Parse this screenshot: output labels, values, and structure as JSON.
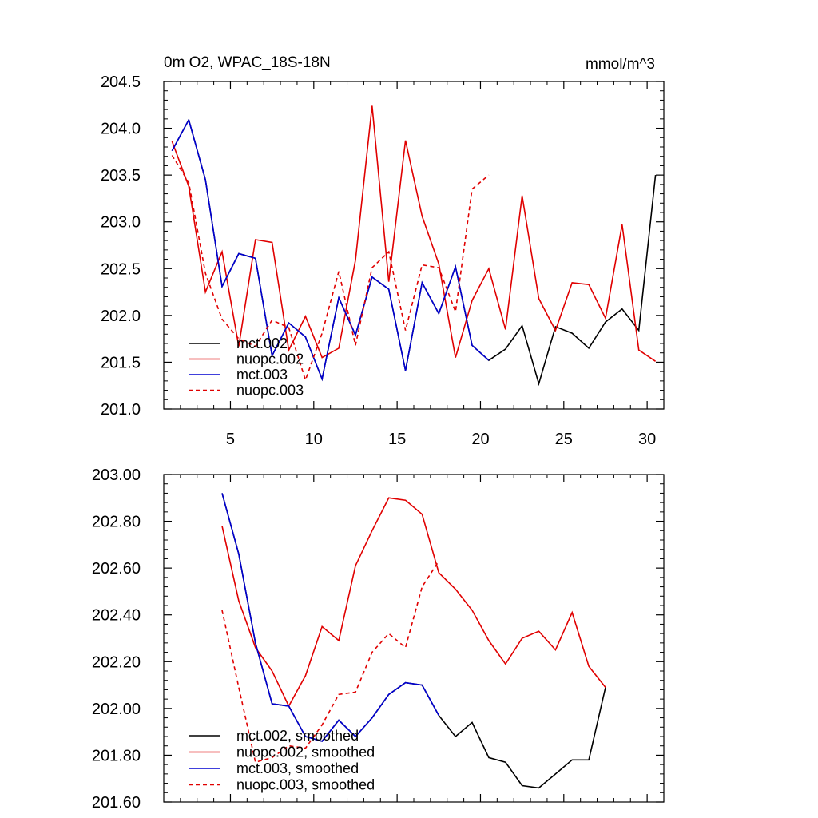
{
  "chart_data": [
    {
      "type": "line",
      "title": "0m O2, WPAC_18S-18N",
      "units": "mmol/m^3",
      "xlabel": "",
      "ylabel": "",
      "xlim": [
        1,
        31
      ],
      "ylim": [
        201.0,
        204.5
      ],
      "x_ticks": [
        5,
        10,
        15,
        20,
        25,
        30
      ],
      "x_tick_labels": [
        "5",
        "10",
        "15",
        "20",
        "25",
        "30"
      ],
      "y_ticks": [
        201.0,
        201.5,
        202.0,
        202.5,
        203.0,
        203.5,
        204.0,
        204.5
      ],
      "y_tick_labels": [
        "201.0",
        "201.5",
        "202.0",
        "202.5",
        "203.0",
        "203.5",
        "204.0",
        "204.5"
      ],
      "x_minor_step": 1,
      "y_minor_step": 0.1,
      "legend_position": "bottom-left",
      "series": [
        {
          "name": "mct.002",
          "color": "#000000",
          "dash": "solid",
          "x": [
            1.5,
            2.5,
            3.5,
            4.5,
            5.5,
            6.5,
            7.5,
            8.5,
            9.5,
            10.5,
            11.5,
            12.5,
            13.5,
            14.5,
            15.5,
            16.5,
            17.5,
            18.5,
            19.5,
            20.5,
            21.5,
            22.5,
            23.5,
            24.5,
            25.5,
            26.5,
            27.5,
            28.5,
            29.5,
            30.5
          ],
          "values": [
            203.76,
            204.09,
            203.45,
            202.31,
            202.66,
            202.61,
            201.57,
            201.92,
            201.77,
            201.32,
            202.19,
            201.79,
            202.41,
            202.28,
            201.41,
            202.35,
            202.02,
            202.52,
            201.68,
            201.52,
            201.64,
            201.89,
            201.27,
            201.88,
            201.81,
            201.65,
            201.93,
            202.07,
            201.84,
            203.5
          ]
        },
        {
          "name": "nuopc.002",
          "color": "#e00000",
          "dash": "solid",
          "x": [
            1.5,
            2.5,
            3.5,
            4.5,
            5.5,
            6.5,
            7.5,
            8.5,
            9.5,
            10.5,
            11.5,
            12.5,
            13.5,
            14.5,
            15.5,
            16.5,
            17.5,
            18.5,
            19.5,
            20.5,
            21.5,
            22.5,
            23.5,
            24.5,
            25.5,
            26.5,
            27.5,
            28.5,
            29.5,
            30.5
          ],
          "values": [
            203.86,
            203.38,
            202.25,
            202.68,
            201.67,
            202.81,
            202.78,
            201.63,
            201.99,
            201.55,
            201.65,
            202.59,
            204.24,
            202.36,
            203.87,
            203.06,
            202.55,
            201.55,
            202.16,
            202.5,
            201.85,
            203.28,
            202.18,
            201.84,
            202.35,
            202.33,
            201.97,
            202.97,
            201.63,
            201.51
          ]
        },
        {
          "name": "mct.003",
          "color": "#0000d0",
          "dash": "solid",
          "x": [
            1.5,
            2.5,
            3.5,
            4.5,
            5.5,
            6.5,
            7.5,
            8.5,
            9.5,
            10.5,
            11.5,
            12.5,
            13.5,
            14.5,
            15.5,
            16.5,
            17.5,
            18.5,
            19.5,
            20.5
          ],
          "values": [
            203.76,
            204.09,
            203.45,
            202.31,
            202.66,
            202.61,
            201.57,
            201.92,
            201.77,
            201.32,
            202.19,
            201.79,
            202.41,
            202.28,
            201.41,
            202.35,
            202.02,
            202.52,
            201.68,
            201.52
          ]
        },
        {
          "name": "nuopc.003",
          "color": "#e00000",
          "dash": "dashed",
          "x": [
            1.5,
            2.5,
            3.5,
            4.5,
            5.5,
            6.5,
            7.5,
            8.5,
            9.5,
            10.5,
            11.5,
            12.5,
            13.5,
            14.5,
            15.5,
            16.5,
            17.5,
            18.5,
            19.5,
            20.5
          ],
          "values": [
            203.71,
            203.42,
            202.45,
            201.96,
            201.75,
            201.67,
            201.95,
            201.87,
            201.31,
            201.81,
            202.47,
            201.68,
            202.51,
            202.68,
            201.84,
            202.54,
            202.51,
            202.04,
            203.35,
            203.5
          ]
        }
      ]
    },
    {
      "type": "line",
      "title": "",
      "xlabel": "",
      "ylabel": "",
      "xlim": [
        1,
        31
      ],
      "ylim": [
        201.6,
        203.0
      ],
      "x_ticks": [
        5,
        10,
        15,
        20,
        25,
        30
      ],
      "x_tick_labels": [],
      "y_ticks": [
        201.6,
        201.8,
        202.0,
        202.2,
        202.4,
        202.6,
        202.8,
        203.0
      ],
      "y_tick_labels": [
        "201.60",
        "201.80",
        "202.00",
        "202.20",
        "202.40",
        "202.60",
        "202.80",
        "203.00"
      ],
      "x_minor_step": 1,
      "y_minor_step": 0.04,
      "legend_position": "bottom-left",
      "series": [
        {
          "name": "mct.002, smoothed",
          "color": "#000000",
          "dash": "solid",
          "x": [
            4.5,
            5.5,
            6.5,
            7.5,
            8.5,
            9.5,
            10.5,
            11.5,
            12.5,
            13.5,
            14.5,
            15.5,
            16.5,
            17.5,
            18.5,
            19.5,
            20.5,
            21.5,
            22.5,
            23.5,
            24.5,
            25.5,
            26.5,
            27.5
          ],
          "values": [
            202.92,
            202.66,
            202.28,
            202.02,
            202.01,
            201.88,
            201.86,
            201.95,
            201.88,
            201.96,
            202.06,
            202.11,
            202.1,
            201.97,
            201.88,
            201.94,
            201.79,
            201.77,
            201.67,
            201.66,
            201.72,
            201.78,
            201.78,
            202.09
          ]
        },
        {
          "name": "nuopc.002, smoothed",
          "color": "#e00000",
          "dash": "solid",
          "x": [
            4.5,
            5.5,
            6.5,
            7.5,
            8.5,
            9.5,
            10.5,
            11.5,
            12.5,
            13.5,
            14.5,
            15.5,
            16.5,
            17.5,
            18.5,
            19.5,
            20.5,
            21.5,
            22.5,
            23.5,
            24.5,
            25.5,
            26.5,
            27.5
          ],
          "values": [
            202.78,
            202.46,
            202.26,
            202.16,
            202.01,
            202.14,
            202.35,
            202.29,
            202.61,
            202.76,
            202.9,
            202.89,
            202.83,
            202.58,
            202.51,
            202.42,
            202.29,
            202.19,
            202.3,
            202.33,
            202.25,
            202.41,
            202.18,
            202.09
          ]
        },
        {
          "name": "mct.003, smoothed",
          "color": "#0000d0",
          "dash": "solid",
          "x": [
            4.5,
            5.5,
            6.5,
            7.5,
            8.5,
            9.5,
            10.5,
            11.5,
            12.5,
            13.5,
            14.5,
            15.5,
            16.5,
            17.5
          ],
          "values": [
            202.92,
            202.66,
            202.28,
            202.02,
            202.01,
            201.88,
            201.86,
            201.95,
            201.88,
            201.96,
            202.06,
            202.11,
            202.1,
            201.97
          ]
        },
        {
          "name": "nuopc.003, smoothed",
          "color": "#e00000",
          "dash": "dashed",
          "x": [
            4.5,
            5.5,
            6.5,
            7.5,
            8.5,
            9.5,
            10.5,
            11.5,
            12.5,
            13.5,
            14.5,
            15.5,
            16.5,
            17.5
          ],
          "values": [
            202.42,
            202.09,
            201.77,
            201.79,
            201.84,
            201.83,
            201.93,
            202.06,
            202.07,
            202.24,
            202.32,
            202.26,
            202.52,
            202.63
          ]
        }
      ]
    }
  ]
}
